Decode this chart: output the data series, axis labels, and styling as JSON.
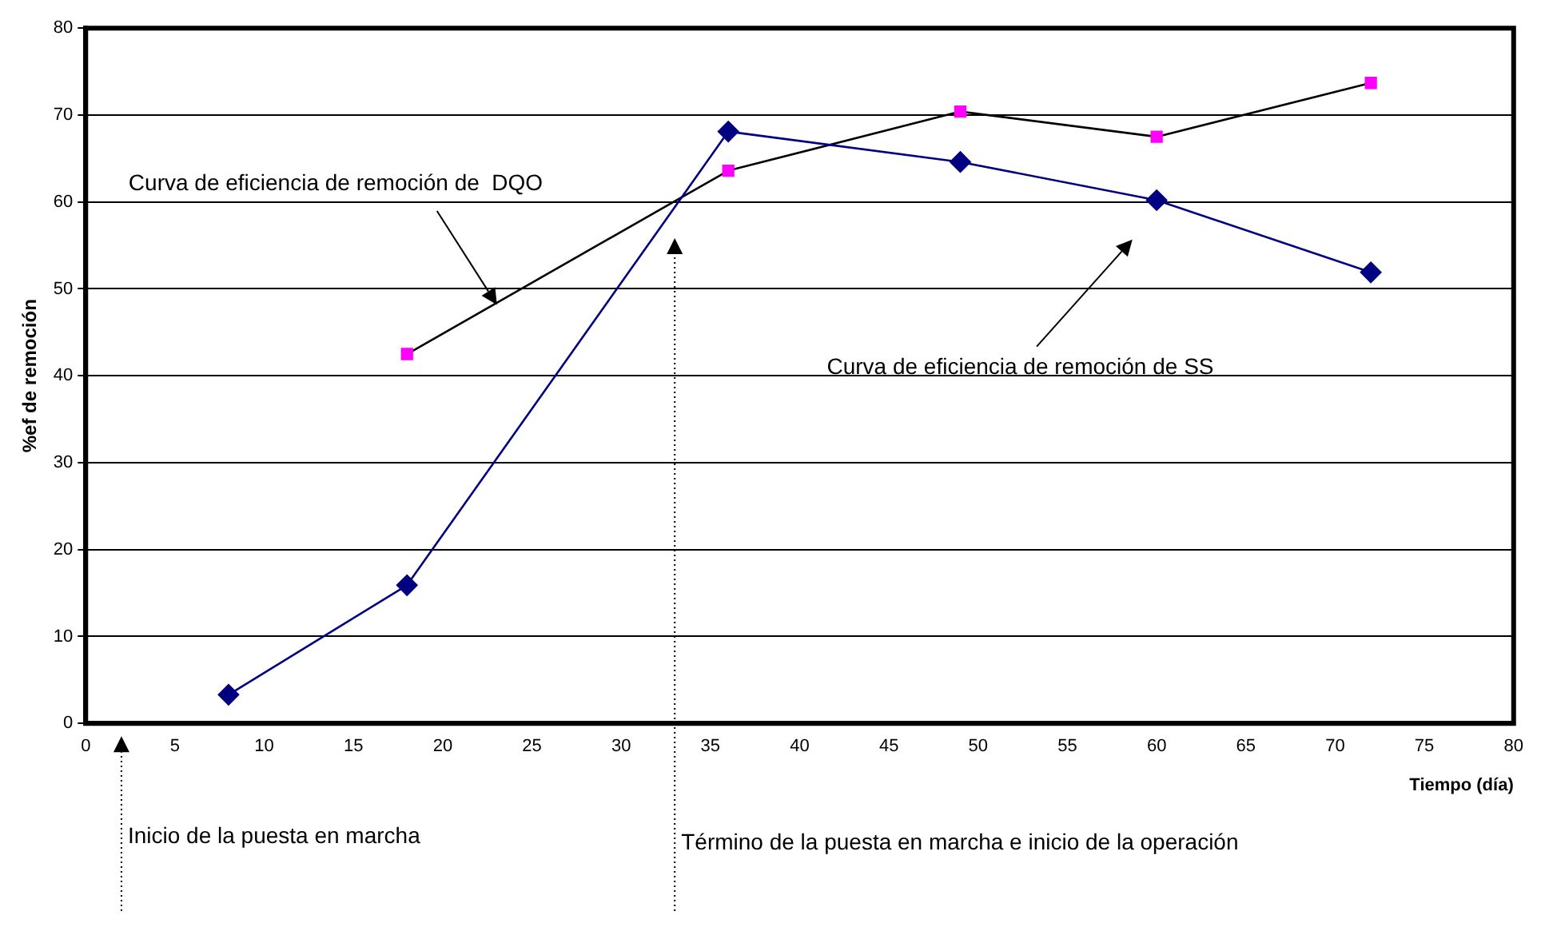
{
  "chart_data": {
    "type": "line",
    "xlabel": "Tiempo (día)",
    "ylabel": "%ef de remoción",
    "xlim": [
      0,
      80
    ],
    "xticks": [
      0,
      5,
      10,
      15,
      20,
      25,
      30,
      35,
      40,
      45,
      50,
      55,
      60,
      65,
      70,
      75,
      80
    ],
    "ylim": [
      0,
      80
    ],
    "yticks": [
      0,
      10,
      20,
      30,
      40,
      50,
      60,
      70,
      80
    ],
    "grid": "y",
    "legend": false,
    "series": [
      {
        "color": "#000080",
        "marker": "diamond",
        "x": [
          8,
          18,
          36,
          49,
          60,
          72
        ],
        "values": [
          3.3,
          15.9,
          68.1,
          64.6,
          60.2,
          51.9
        ]
      },
      {
        "color": "#000000",
        "colors": [
          "#ff00ff",
          "#ff00ff",
          "#ff00ff",
          "#ff00ff",
          "#ff00ff"
        ],
        "marker": "square",
        "x": [
          18,
          36,
          49,
          60,
          72
        ],
        "values": [
          42.5,
          63.6,
          70.4,
          67.5,
          73.7
        ]
      }
    ],
    "annotations": [
      "Curva de eficiencia de remoción de  DQO",
      "Curva de eficiencia de remoción de SS"
    ],
    "ref_lines": [
      {
        "axis": "x",
        "value": 2,
        "label": "Inicio de la puesta en marcha",
        "line_style": "dotted"
      },
      {
        "axis": "x",
        "value": 33,
        "label": "Término de la puesta en marcha e inicio de la operación",
        "line_style": "dotted"
      }
    ]
  }
}
